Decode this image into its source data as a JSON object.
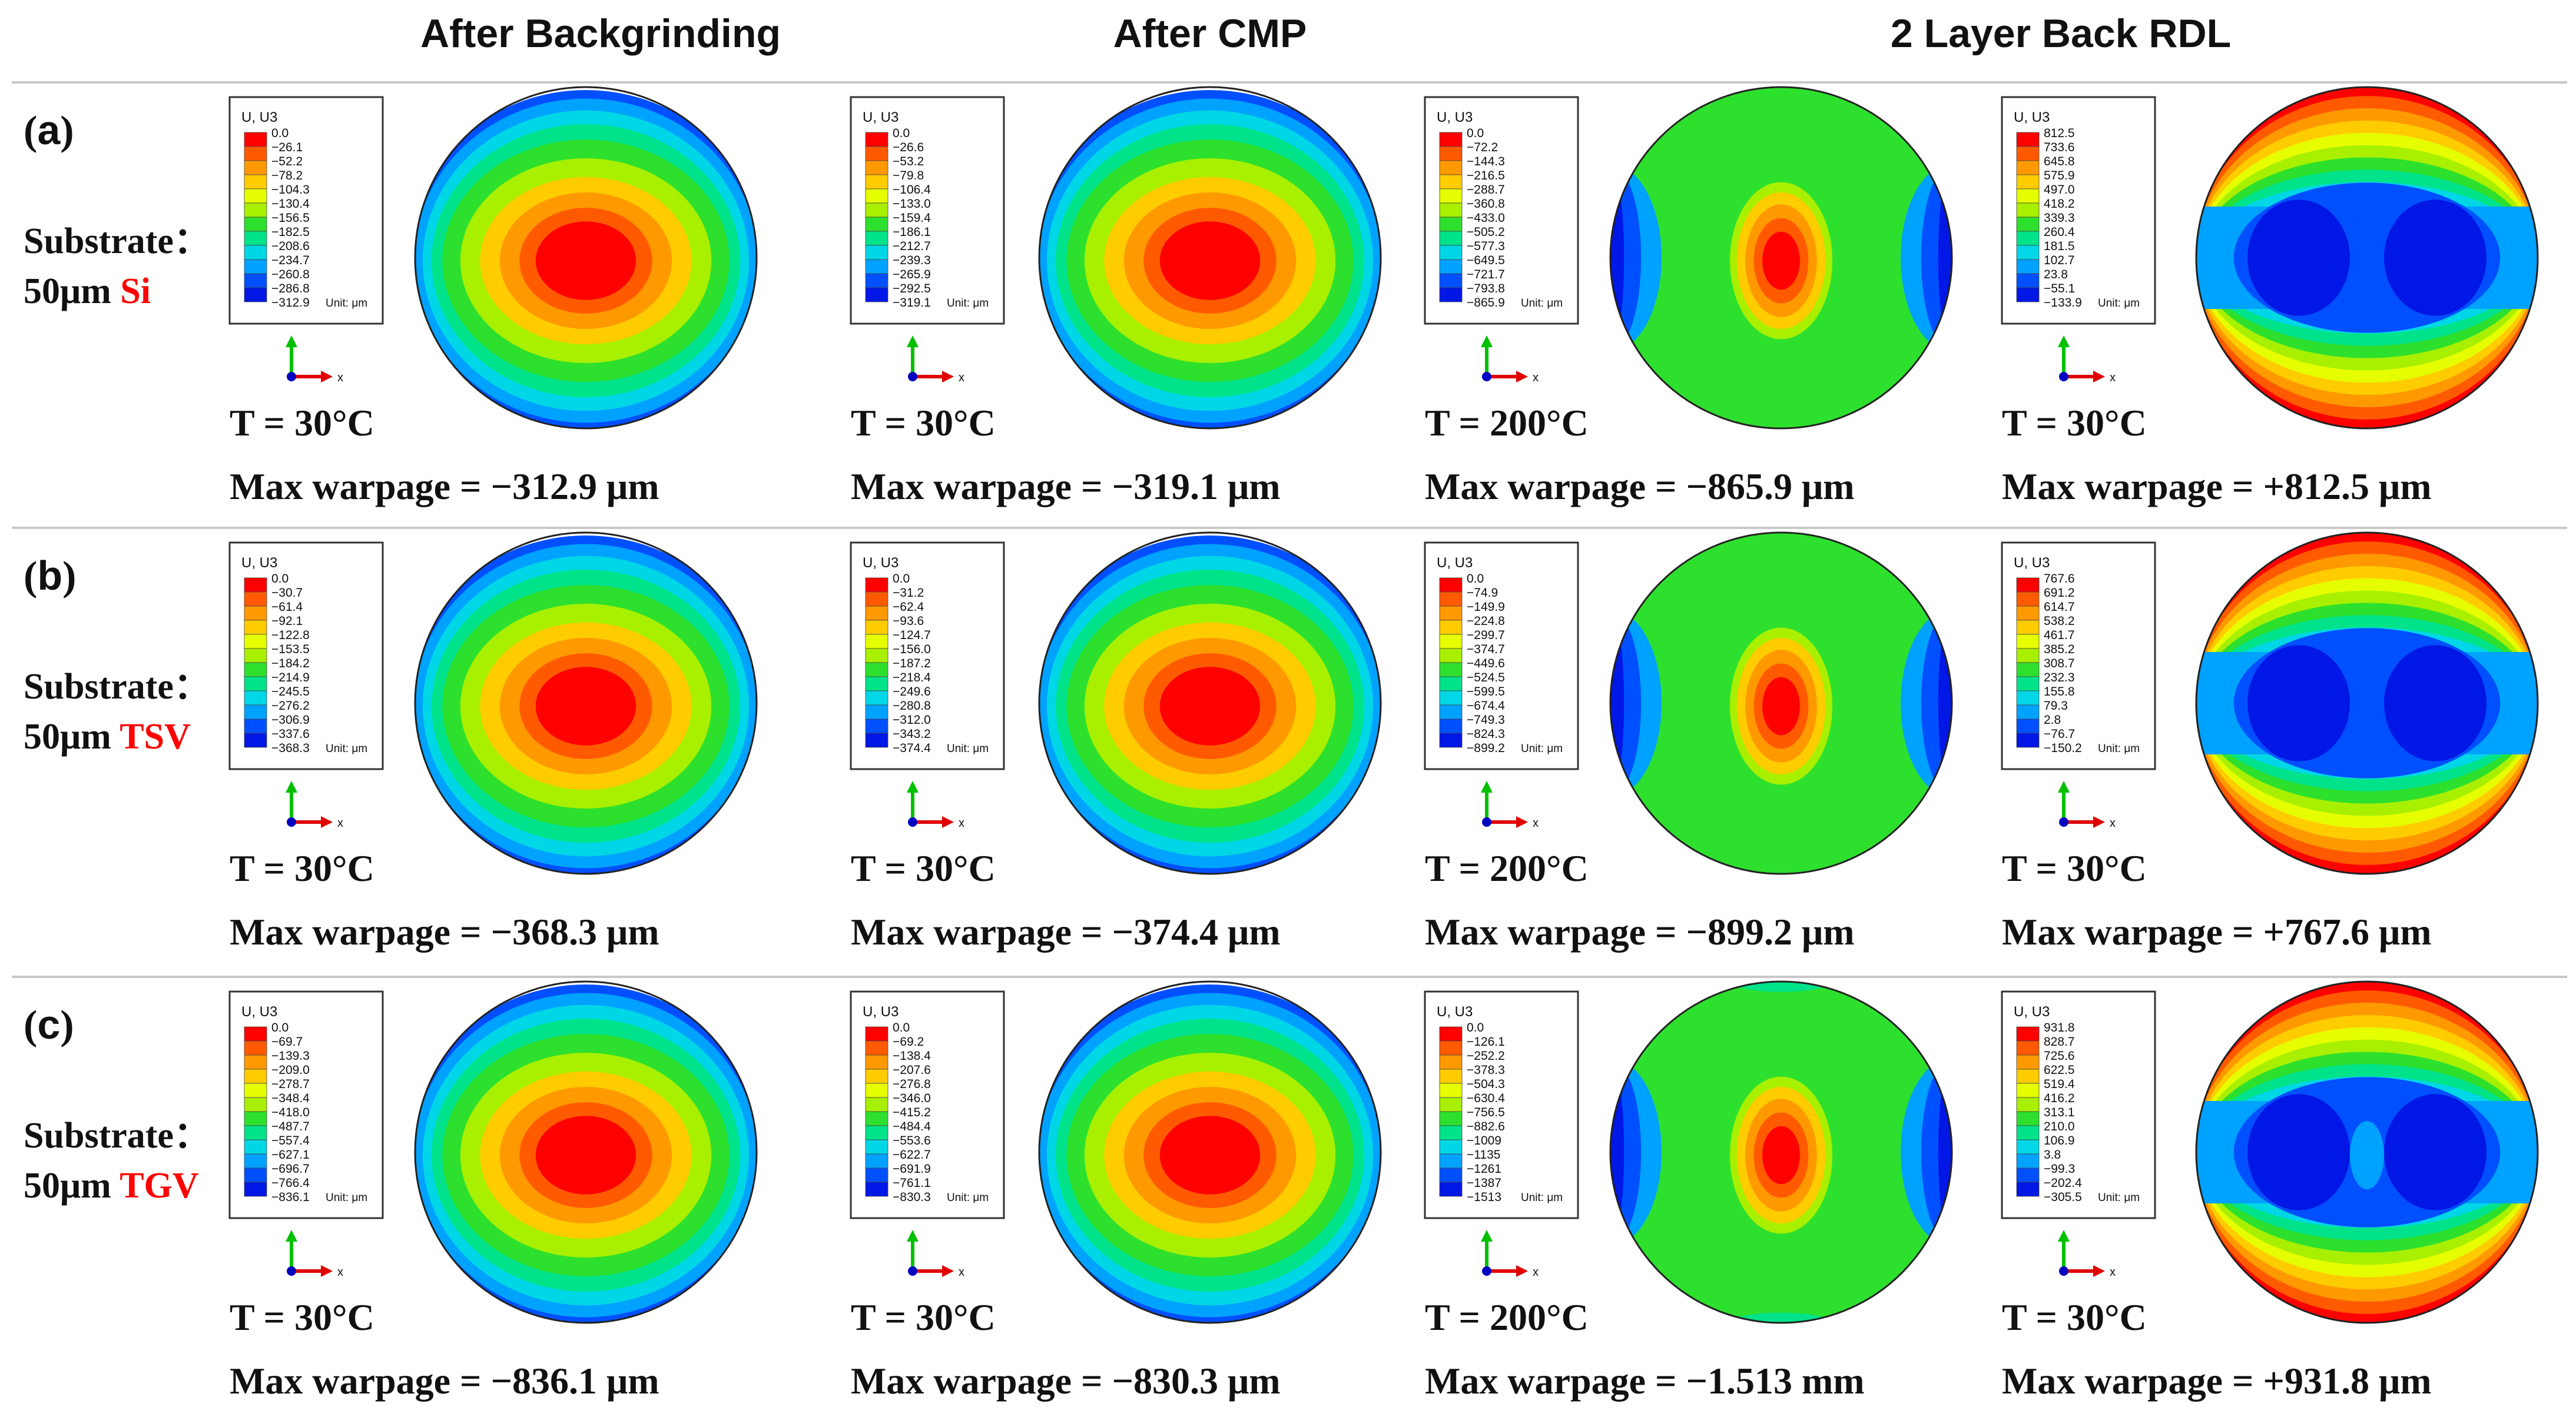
{
  "column_titles": [
    "After Backgrinding",
    "After CMP",
    "2 Layer Back RDL"
  ],
  "legend_title": "U, U3",
  "unit_label": "Unit: μm",
  "axis_x_label": "x",
  "substrate_label": "Substrate",
  "colors": {
    "red": "#ff0000",
    "orange_red": "#ff5a00",
    "orange": "#ff9900",
    "yellow_orange": "#ffcc00",
    "yellow": "#e6ff00",
    "yellow_green": "#a8f000",
    "green": "#2ee02e",
    "green_cyan": "#00e38a",
    "cyan": "#00d7e6",
    "sky": "#00a2ff",
    "blue": "#0050ff",
    "navy": "#0017e6",
    "highlight": "#ff0000",
    "axis_green": "#00c000",
    "axis_red": "#e00000",
    "axis_blue": "#0000c0"
  },
  "rows": [
    {
      "label": "(a)",
      "label_open": "(",
      "label_letter": "a",
      "label_close": ")",
      "substrate_prefix": "50μm",
      "substrate_name": "Si",
      "panels": [
        {
          "legend": [
            "0.0",
            "−26.1",
            "−52.2",
            "−78.2",
            "−104.3",
            "−130.4",
            "−156.5",
            "−182.5",
            "−208.6",
            "−234.7",
            "−260.8",
            "−286.8",
            "−312.9"
          ],
          "temperature": "T = 30°C",
          "warpage": "Max warpage = −312.9 μm",
          "pattern": "bowl"
        },
        {
          "legend": [
            "0.0",
            "−26.6",
            "−53.2",
            "−79.8",
            "−106.4",
            "−133.0",
            "−159.4",
            "−186.1",
            "−212.7",
            "−239.3",
            "−265.9",
            "−292.5",
            "−319.1"
          ],
          "temperature": "T = 30°C",
          "warpage": "Max warpage = −319.1 μm",
          "pattern": "bowl"
        },
        {
          "legend": [
            "0.0",
            "−72.2",
            "−144.3",
            "−216.5",
            "−288.7",
            "−360.8",
            "−433.0",
            "−505.2",
            "−577.3",
            "−649.5",
            "−721.7",
            "−793.8",
            "−865.9"
          ],
          "temperature": "T = 200°C",
          "warpage": "Max warpage = −865.9 μm",
          "pattern": "center"
        },
        {
          "legend": [
            "812.5",
            "733.6",
            "645.8",
            "575.9",
            "497.0",
            "418.2",
            "339.3",
            "260.4",
            "181.5",
            "102.7",
            "23.8",
            "−55.1",
            "−133.9"
          ],
          "temperature": "T = 30°C",
          "warpage": "Max warpage = +812.5 μm",
          "pattern": "saddle"
        }
      ]
    },
    {
      "label": "(b)",
      "label_open": "(",
      "label_letter": "b",
      "label_close": ")",
      "substrate_prefix": "50μm",
      "substrate_name": "TSV",
      "panels": [
        {
          "legend": [
            "0.0",
            "−30.7",
            "−61.4",
            "−92.1",
            "−122.8",
            "−153.5",
            "−184.2",
            "−214.9",
            "−245.5",
            "−276.2",
            "−306.9",
            "−337.6",
            "−368.3"
          ],
          "temperature": "T = 30°C",
          "warpage": "Max warpage = −368.3 μm",
          "pattern": "bowl"
        },
        {
          "legend": [
            "0.0",
            "−31.2",
            "−62.4",
            "−93.6",
            "−124.7",
            "−156.0",
            "−187.2",
            "−218.4",
            "−249.6",
            "−280.8",
            "−312.0",
            "−343.2",
            "−374.4"
          ],
          "temperature": "T = 30°C",
          "warpage": "Max warpage = −374.4 μm",
          "pattern": "bowl"
        },
        {
          "legend": [
            "0.0",
            "−74.9",
            "−149.9",
            "−224.8",
            "−299.7",
            "−374.7",
            "−449.6",
            "−524.5",
            "−599.5",
            "−674.4",
            "−749.3",
            "−824.3",
            "−899.2"
          ],
          "temperature": "T = 200°C",
          "warpage": "Max warpage = −899.2 μm",
          "pattern": "center"
        },
        {
          "legend": [
            "767.6",
            "691.2",
            "614.7",
            "538.2",
            "461.7",
            "385.2",
            "308.7",
            "232.3",
            "155.8",
            "79.3",
            "2.8",
            "−76.7",
            "−150.2"
          ],
          "temperature": "T = 30°C",
          "warpage": "Max warpage = +767.6 μm",
          "pattern": "saddle"
        }
      ]
    },
    {
      "label": "(c)",
      "label_open": "(",
      "label_letter": "c",
      "label_close": ")",
      "substrate_prefix": "50μm",
      "substrate_name": "TGV",
      "panels": [
        {
          "legend": [
            "0.0",
            "−69.7",
            "−139.3",
            "−209.0",
            "−278.7",
            "−348.4",
            "−418.0",
            "−487.7",
            "−557.4",
            "−627.1",
            "−696.7",
            "−766.4",
            "−836.1"
          ],
          "temperature": "T = 30°C",
          "warpage": "Max warpage = −836.1 μm",
          "pattern": "bowl"
        },
        {
          "legend": [
            "0.0",
            "−69.2",
            "−138.4",
            "−207.6",
            "−276.8",
            "−346.0",
            "−415.2",
            "−484.4",
            "−553.6",
            "−622.7",
            "−691.9",
            "−761.1",
            "−830.3"
          ],
          "temperature": "T = 30°C",
          "warpage": "Max warpage = −830.3 μm",
          "pattern": "bowl"
        },
        {
          "legend": [
            "0.0",
            "−126.1",
            "−252.2",
            "−378.3",
            "−504.3",
            "−630.4",
            "−756.5",
            "−882.6",
            "−1009",
            "−1135",
            "−1261",
            "−1387",
            "−1513"
          ],
          "temperature": "T = 200°C",
          "warpage": "Max warpage = −1.513 mm",
          "pattern": "center"
        },
        {
          "legend": [
            "931.8",
            "828.7",
            "725.6",
            "622.5",
            "519.4",
            "416.2",
            "313.1",
            "210.0",
            "106.9",
            "3.8",
            "−99.3",
            "−202.4",
            "−305.5"
          ],
          "temperature": "T = 30°C",
          "warpage": "Max warpage = +931.8 μm",
          "pattern": "saddle"
        }
      ]
    }
  ]
}
